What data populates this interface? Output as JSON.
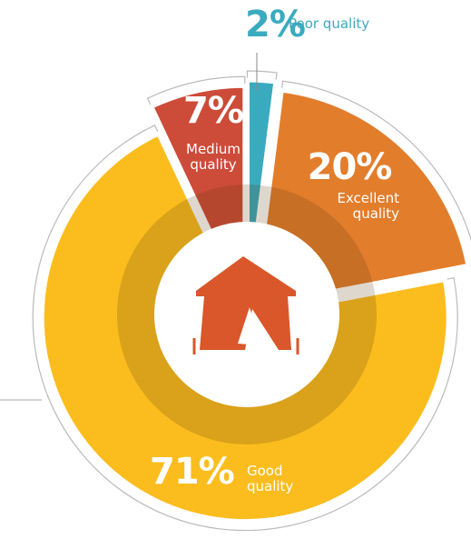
{
  "chart_data": {
    "type": "pie",
    "categories": [
      "Poor quality",
      "Excellent quality",
      "Good quality",
      "Medium quality"
    ],
    "values": [
      2,
      20,
      71,
      7
    ],
    "value_labels": [
      "2%",
      "20%",
      "71%",
      "7%"
    ],
    "colors": [
      "#3aabbf",
      "#e27d2c",
      "#fbbd1e",
      "#cd4b39"
    ]
  }
}
